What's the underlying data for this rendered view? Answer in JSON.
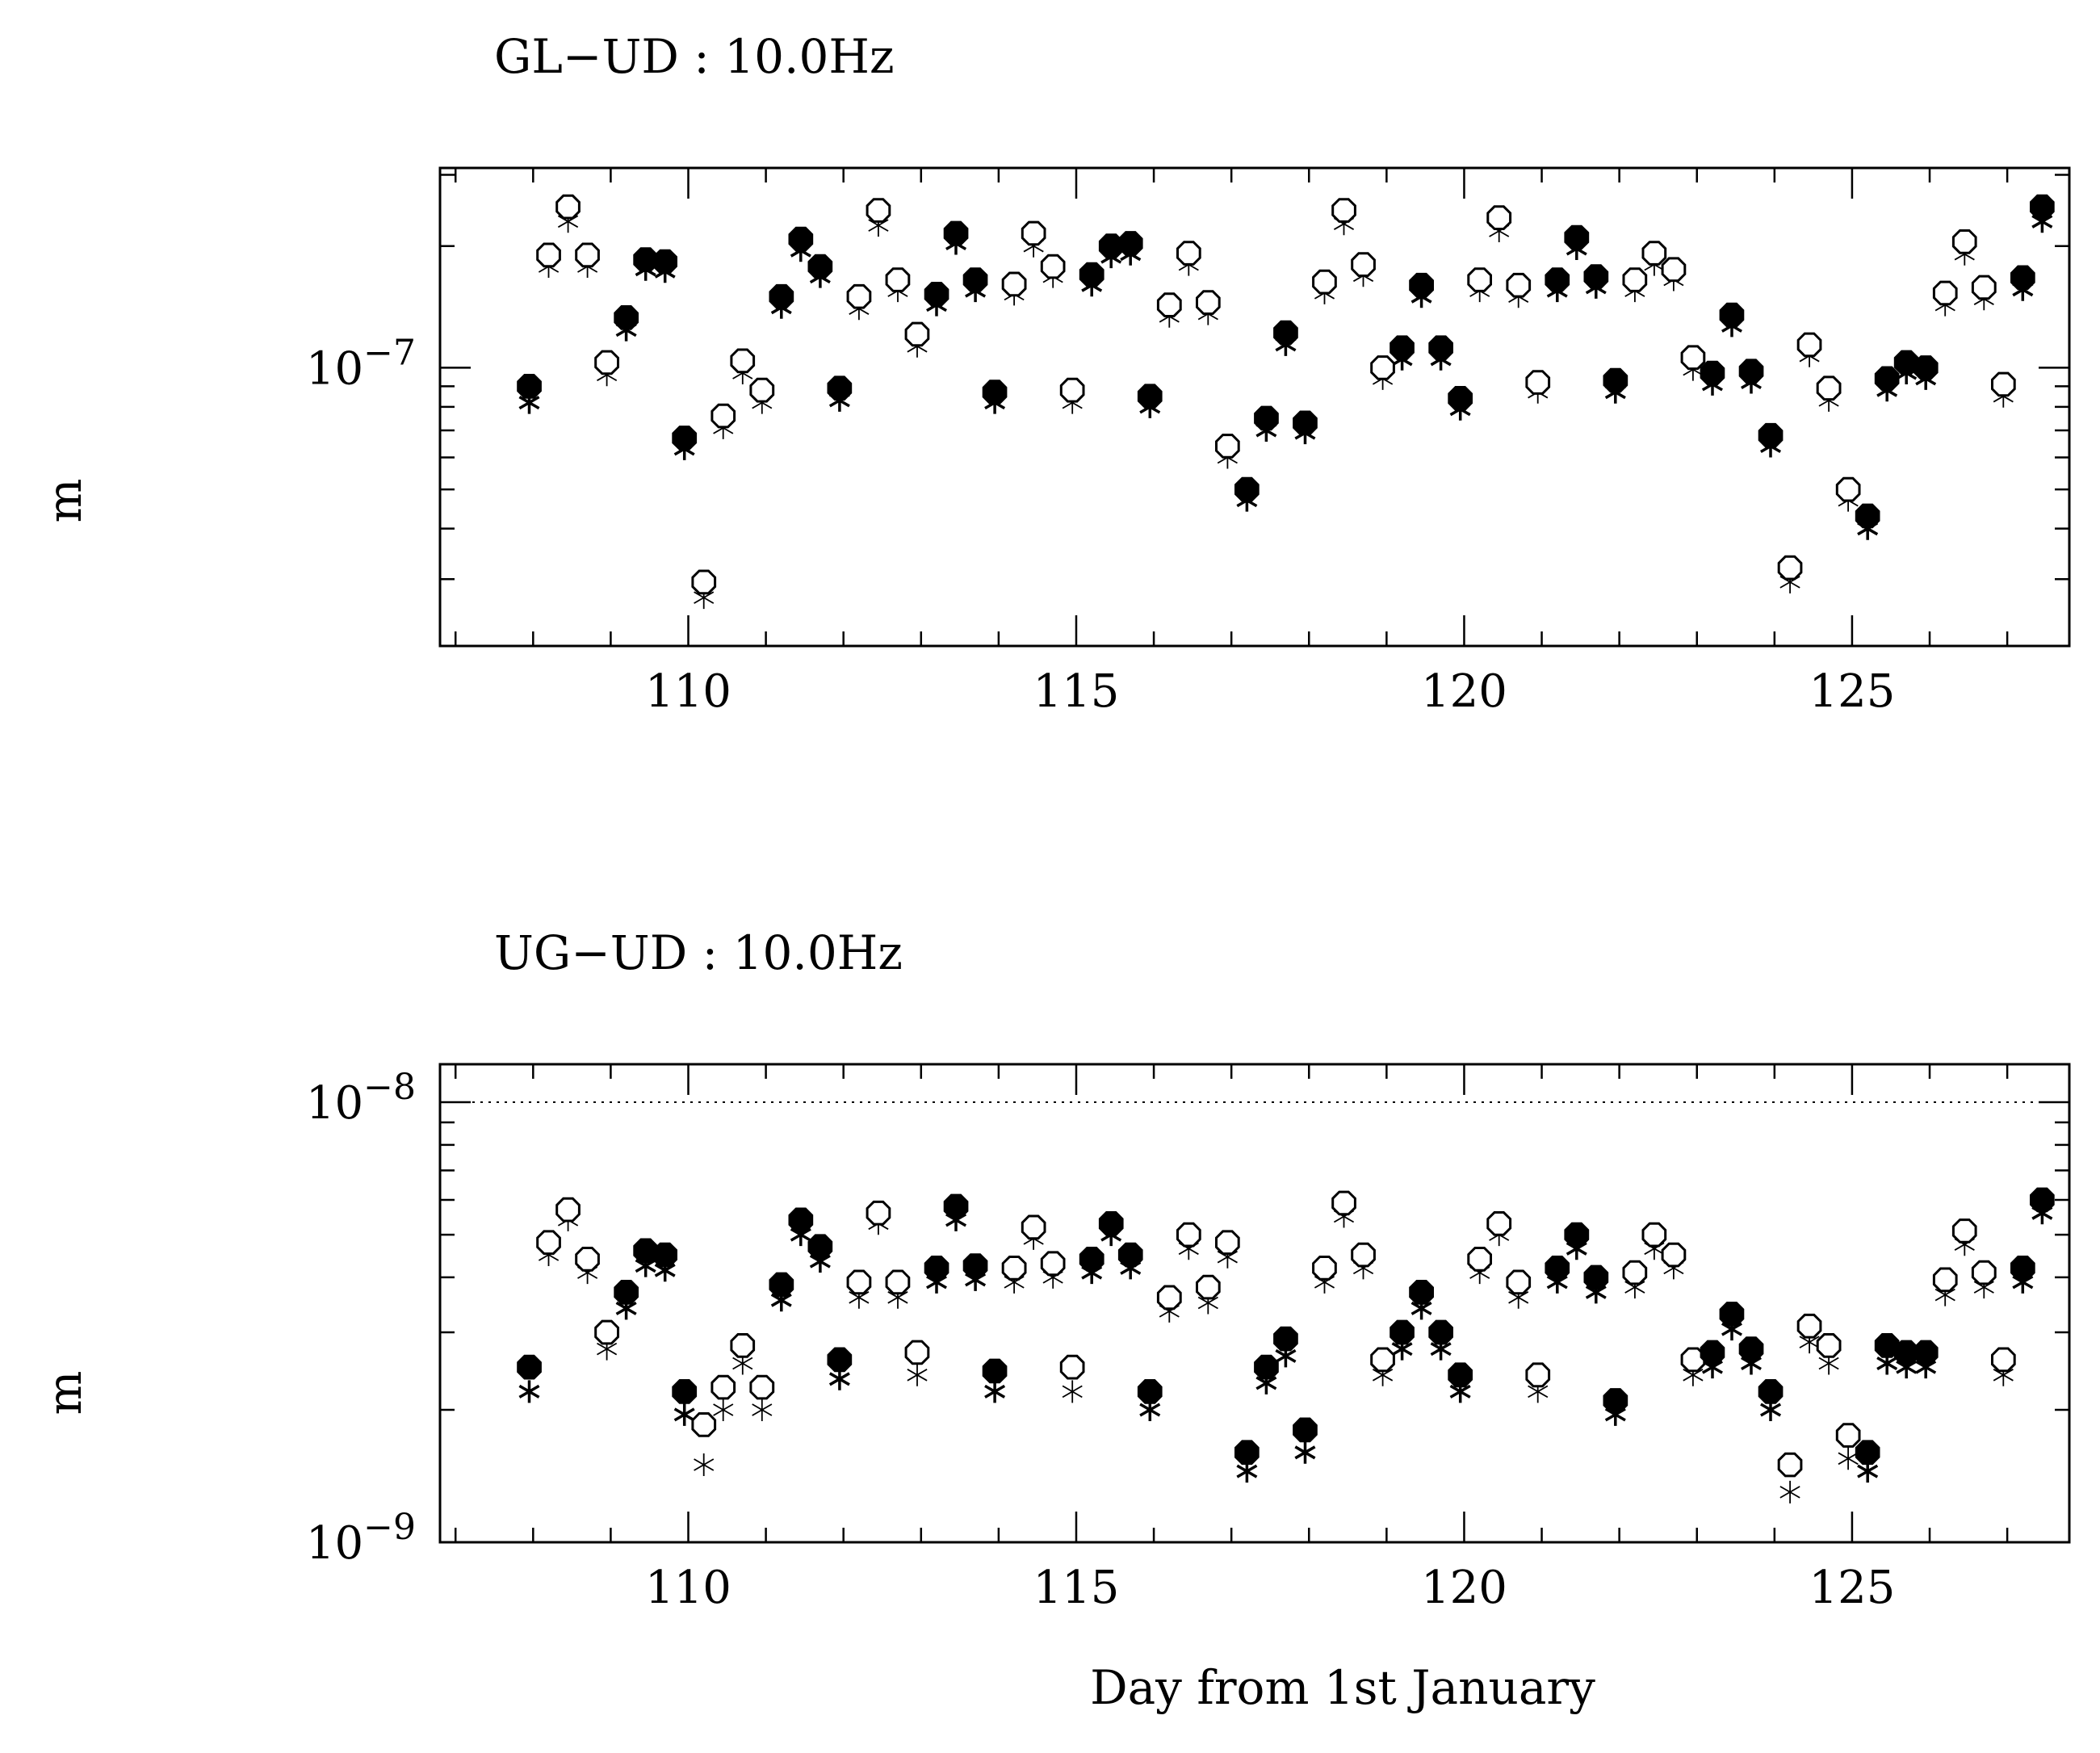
{
  "chart_data": [
    {
      "type": "scatter",
      "title": "GL−UD : 10.0Hz",
      "xlabel": "",
      "ylabel": "m",
      "xlim": [
        106.8,
        127.8
      ],
      "ylim": [
        2.05e-08,
        3.12e-07
      ],
      "log_y": true,
      "grid": false,
      "x_ticks": [
        110,
        115,
        120,
        125
      ],
      "x_tick_labels": [
        "110",
        "115",
        "120",
        "125"
      ],
      "y_tick_labels": [
        {
          "value": 1e-07,
          "base": "10",
          "exp": "−7"
        }
      ],
      "reference_line": null,
      "x": [
        107.95,
        108.2,
        108.45,
        108.7,
        108.95,
        109.2,
        109.45,
        109.7,
        109.95,
        110.2,
        110.45,
        110.7,
        110.95,
        111.2,
        111.45,
        111.7,
        111.95,
        112.2,
        112.45,
        112.7,
        112.95,
        113.2,
        113.45,
        113.7,
        113.95,
        114.2,
        114.45,
        114.7,
        114.95,
        115.2,
        115.45,
        115.7,
        115.95,
        116.2,
        116.45,
        116.7,
        116.95,
        117.2,
        117.45,
        117.7,
        117.95,
        118.2,
        118.45,
        118.7,
        118.95,
        119.2,
        119.45,
        119.7,
        119.95,
        120.2,
        120.45,
        120.7,
        120.95,
        121.2,
        121.45,
        121.7,
        121.95,
        122.2,
        122.45,
        122.7,
        122.95,
        123.2,
        123.45,
        123.7,
        123.95,
        124.2,
        124.45,
        124.7,
        124.95,
        125.2,
        125.45,
        125.7,
        125.95,
        126.2,
        126.45,
        126.7,
        126.95,
        127.2,
        127.45
      ],
      "series": [
        {
          "marker": "filled-octagon",
          "values": [
            9e-08,
            1.9e-07,
            2.5e-07,
            1.9e-07,
            1.03e-07,
            1.33e-07,
            1.85e-07,
            1.83e-07,
            6.7e-08,
            2.95e-08,
            7.6e-08,
            1.04e-07,
            8.8e-08,
            1.5e-07,
            2.08e-07,
            1.78e-07,
            8.9e-08,
            1.5e-07,
            2.45e-07,
            1.65e-07,
            1.21e-07,
            1.52e-07,
            2.15e-07,
            1.65e-07,
            8.7e-08,
            1.61e-07,
            2.15e-07,
            1.78e-07,
            8.8e-08,
            1.7e-07,
            2e-07,
            2.03e-07,
            8.5e-08,
            1.43e-07,
            1.92e-07,
            1.45e-07,
            6.4e-08,
            5e-08,
            7.5e-08,
            1.22e-07,
            7.3e-08,
            1.63e-07,
            2.45e-07,
            1.8e-07,
            1e-07,
            1.12e-07,
            1.6e-07,
            1.12e-07,
            8.4e-08,
            1.65e-07,
            2.35e-07,
            1.6e-07,
            9.2e-08,
            1.65e-07,
            2.1e-07,
            1.68e-07,
            9.3e-08,
            1.65e-07,
            1.92e-07,
            1.75e-07,
            1.06e-07,
            9.7e-08,
            1.35e-07,
            9.8e-08,
            6.8e-08,
            3.2e-08,
            1.14e-07,
            8.9e-08,
            5e-08,
            4.3e-08,
            9.4e-08,
            1.03e-07,
            1e-07,
            1.53e-07,
            2.05e-07,
            1.58e-07,
            9.1e-08,
            1.67e-07,
            2.5e-07
          ],
          "filled": [
            true,
            false,
            false,
            false,
            false,
            true,
            true,
            true,
            true,
            false,
            false,
            false,
            false,
            true,
            true,
            true,
            true,
            false,
            false,
            false,
            false,
            true,
            true,
            true,
            true,
            false,
            false,
            false,
            false,
            true,
            true,
            true,
            true,
            false,
            false,
            false,
            false,
            true,
            true,
            true,
            true,
            false,
            false,
            false,
            false,
            true,
            true,
            true,
            true,
            false,
            false,
            false,
            false,
            true,
            true,
            true,
            true,
            false,
            false,
            false,
            false,
            true,
            true,
            true,
            true,
            false,
            false,
            false,
            false,
            true,
            true,
            true,
            true,
            false,
            false,
            false,
            false,
            true,
            true
          ]
        },
        {
          "marker": "asterisk",
          "values": [
            8.2e-08,
            1.78e-07,
            2.3e-07,
            1.78e-07,
            9.6e-08,
            1.24e-07,
            1.75e-07,
            1.73e-07,
            6.3e-08,
            2.7e-08,
            7.1e-08,
            9.7e-08,
            8.2e-08,
            1.41e-07,
            1.95e-07,
            1.68e-07,
            8.3e-08,
            1.4e-07,
            2.25e-07,
            1.55e-07,
            1.13e-07,
            1.43e-07,
            2.03e-07,
            1.55e-07,
            8.2e-08,
            1.52e-07,
            2e-07,
            1.68e-07,
            8.2e-08,
            1.6e-07,
            1.88e-07,
            1.91e-07,
            8e-08,
            1.34e-07,
            1.8e-07,
            1.36e-07,
            6e-08,
            4.7e-08,
            7e-08,
            1.14e-07,
            6.9e-08,
            1.53e-07,
            2.27e-07,
            1.69e-07,
            9.4e-08,
            1.05e-07,
            1.5e-07,
            1.05e-07,
            7.9e-08,
            1.55e-07,
            2.18e-07,
            1.5e-07,
            8.7e-08,
            1.55e-07,
            1.97e-07,
            1.58e-07,
            8.7e-08,
            1.55e-07,
            1.8e-07,
            1.65e-07,
            9.9e-08,
            9.1e-08,
            1.27e-07,
            9.2e-08,
            6.4e-08,
            2.95e-08,
            1.07e-07,
            8.3e-08,
            4.7e-08,
            4e-08,
            8.8e-08,
            9.7e-08,
            9.4e-08,
            1.43e-07,
            1.91e-07,
            1.48e-07,
            8.5e-08,
            1.56e-07,
            2.3e-07
          ]
        }
      ]
    },
    {
      "type": "scatter",
      "title": "UG−UD : 10.0Hz",
      "xlabel": "Day from 1st January",
      "ylabel": "m",
      "xlim": [
        106.8,
        127.8
      ],
      "ylim": [
        1e-09,
        1.22e-08
      ],
      "log_y": true,
      "grid": false,
      "x_ticks": [
        110,
        115,
        120,
        125
      ],
      "x_tick_labels": [
        "110",
        "115",
        "120",
        "125"
      ],
      "y_tick_labels": [
        {
          "value": 1e-09,
          "base": "10",
          "exp": "−9"
        },
        {
          "value": 1e-08,
          "base": "10",
          "exp": "−8"
        }
      ],
      "reference_line": 1e-08,
      "x": [
        107.95,
        108.2,
        108.45,
        108.7,
        108.95,
        109.2,
        109.45,
        109.7,
        109.95,
        110.2,
        110.45,
        110.7,
        110.95,
        111.2,
        111.45,
        111.7,
        111.95,
        112.2,
        112.45,
        112.7,
        112.95,
        113.2,
        113.45,
        113.7,
        113.95,
        114.2,
        114.45,
        114.7,
        114.95,
        115.2,
        115.45,
        115.7,
        115.95,
        116.2,
        116.45,
        116.7,
        116.95,
        117.2,
        117.45,
        117.7,
        117.95,
        118.2,
        118.45,
        118.7,
        118.95,
        119.2,
        119.45,
        119.7,
        119.95,
        120.2,
        120.45,
        120.7,
        120.95,
        121.2,
        121.45,
        121.7,
        121.95,
        122.2,
        122.45,
        122.7,
        122.95,
        123.2,
        123.45,
        123.7,
        123.95,
        124.2,
        124.45,
        124.7,
        124.95,
        125.2,
        125.45,
        125.7,
        125.95,
        126.2,
        126.45,
        126.7,
        126.95,
        127.2,
        127.45
      ],
      "series": [
        {
          "marker": "filled-octagon",
          "values": [
            2.5e-09,
            4.8e-09,
            5.7e-09,
            4.4e-09,
            3e-09,
            3.7e-09,
            4.6e-09,
            4.5e-09,
            2.2e-09,
            1.85e-09,
            2.25e-09,
            2.8e-09,
            2.25e-09,
            3.85e-09,
            5.4e-09,
            4.7e-09,
            2.6e-09,
            3.9e-09,
            5.6e-09,
            3.9e-09,
            2.7e-09,
            4.2e-09,
            5.8e-09,
            4.25e-09,
            2.45e-09,
            4.2e-09,
            5.2e-09,
            4.3e-09,
            2.5e-09,
            4.4e-09,
            5.3e-09,
            4.5e-09,
            2.2e-09,
            3.6e-09,
            5e-09,
            3.8e-09,
            4.8e-09,
            1.6e-09,
            2.5e-09,
            2.9e-09,
            1.8e-09,
            4.2e-09,
            5.9e-09,
            4.5e-09,
            2.6e-09,
            3e-09,
            3.7e-09,
            3e-09,
            2.4e-09,
            4.4e-09,
            5.3e-09,
            3.9e-09,
            2.4e-09,
            4.2e-09,
            5e-09,
            4e-09,
            2.1e-09,
            4.1e-09,
            5e-09,
            4.5e-09,
            2.6e-09,
            2.7e-09,
            3.3e-09,
            2.75e-09,
            2.2e-09,
            1.5e-09,
            3.1e-09,
            2.8e-09,
            1.75e-09,
            1.6e-09,
            2.8e-09,
            2.7e-09,
            2.7e-09,
            3.95e-09,
            5.1e-09,
            4.1e-09,
            2.6e-09,
            4.2e-09,
            6e-09
          ],
          "filled": [
            true,
            false,
            false,
            false,
            false,
            true,
            true,
            true,
            true,
            false,
            false,
            false,
            false,
            true,
            true,
            true,
            true,
            false,
            false,
            false,
            false,
            true,
            true,
            true,
            true,
            false,
            false,
            false,
            false,
            true,
            true,
            true,
            true,
            false,
            false,
            false,
            false,
            true,
            true,
            true,
            true,
            false,
            false,
            false,
            false,
            true,
            true,
            true,
            true,
            false,
            false,
            false,
            false,
            true,
            true,
            true,
            true,
            false,
            false,
            false,
            false,
            true,
            true,
            true,
            true,
            false,
            false,
            false,
            false,
            true,
            true,
            true,
            true,
            false,
            false,
            false,
            false,
            true,
            true
          ]
        },
        {
          "marker": "asterisk",
          "values": [
            2.2e-09,
            4.5e-09,
            5.4e-09,
            4.1e-09,
            2.75e-09,
            3.4e-09,
            4.25e-09,
            4.15e-09,
            1.95e-09,
            1.5e-09,
            2e-09,
            2.55e-09,
            2e-09,
            3.55e-09,
            5e-09,
            4.35e-09,
            2.35e-09,
            3.6e-09,
            5.3e-09,
            3.6e-09,
            2.4e-09,
            3.9e-09,
            5.4e-09,
            3.95e-09,
            2.2e-09,
            3.9e-09,
            4.9e-09,
            4e-09,
            2.2e-09,
            4.1e-09,
            5e-09,
            4.2e-09,
            2e-09,
            3.35e-09,
            4.65e-09,
            3.5e-09,
            4.45e-09,
            1.45e-09,
            2.3e-09,
            2.65e-09,
            1.6e-09,
            3.9e-09,
            5.5e-09,
            4.2e-09,
            2.4e-09,
            2.75e-09,
            3.4e-09,
            2.75e-09,
            2.2e-09,
            4.1e-09,
            5e-09,
            3.6e-09,
            2.2e-09,
            3.9e-09,
            4.65e-09,
            3.7e-09,
            1.95e-09,
            3.8e-09,
            4.65e-09,
            4.2e-09,
            2.4e-09,
            2.5e-09,
            3.05e-09,
            2.55e-09,
            2e-09,
            1.3e-09,
            2.85e-09,
            2.55e-09,
            1.55e-09,
            1.45e-09,
            2.55e-09,
            2.5e-09,
            2.5e-09,
            3.65e-09,
            4.75e-09,
            3.8e-09,
            2.4e-09,
            3.9e-09,
            5.6e-09
          ]
        }
      ]
    }
  ]
}
